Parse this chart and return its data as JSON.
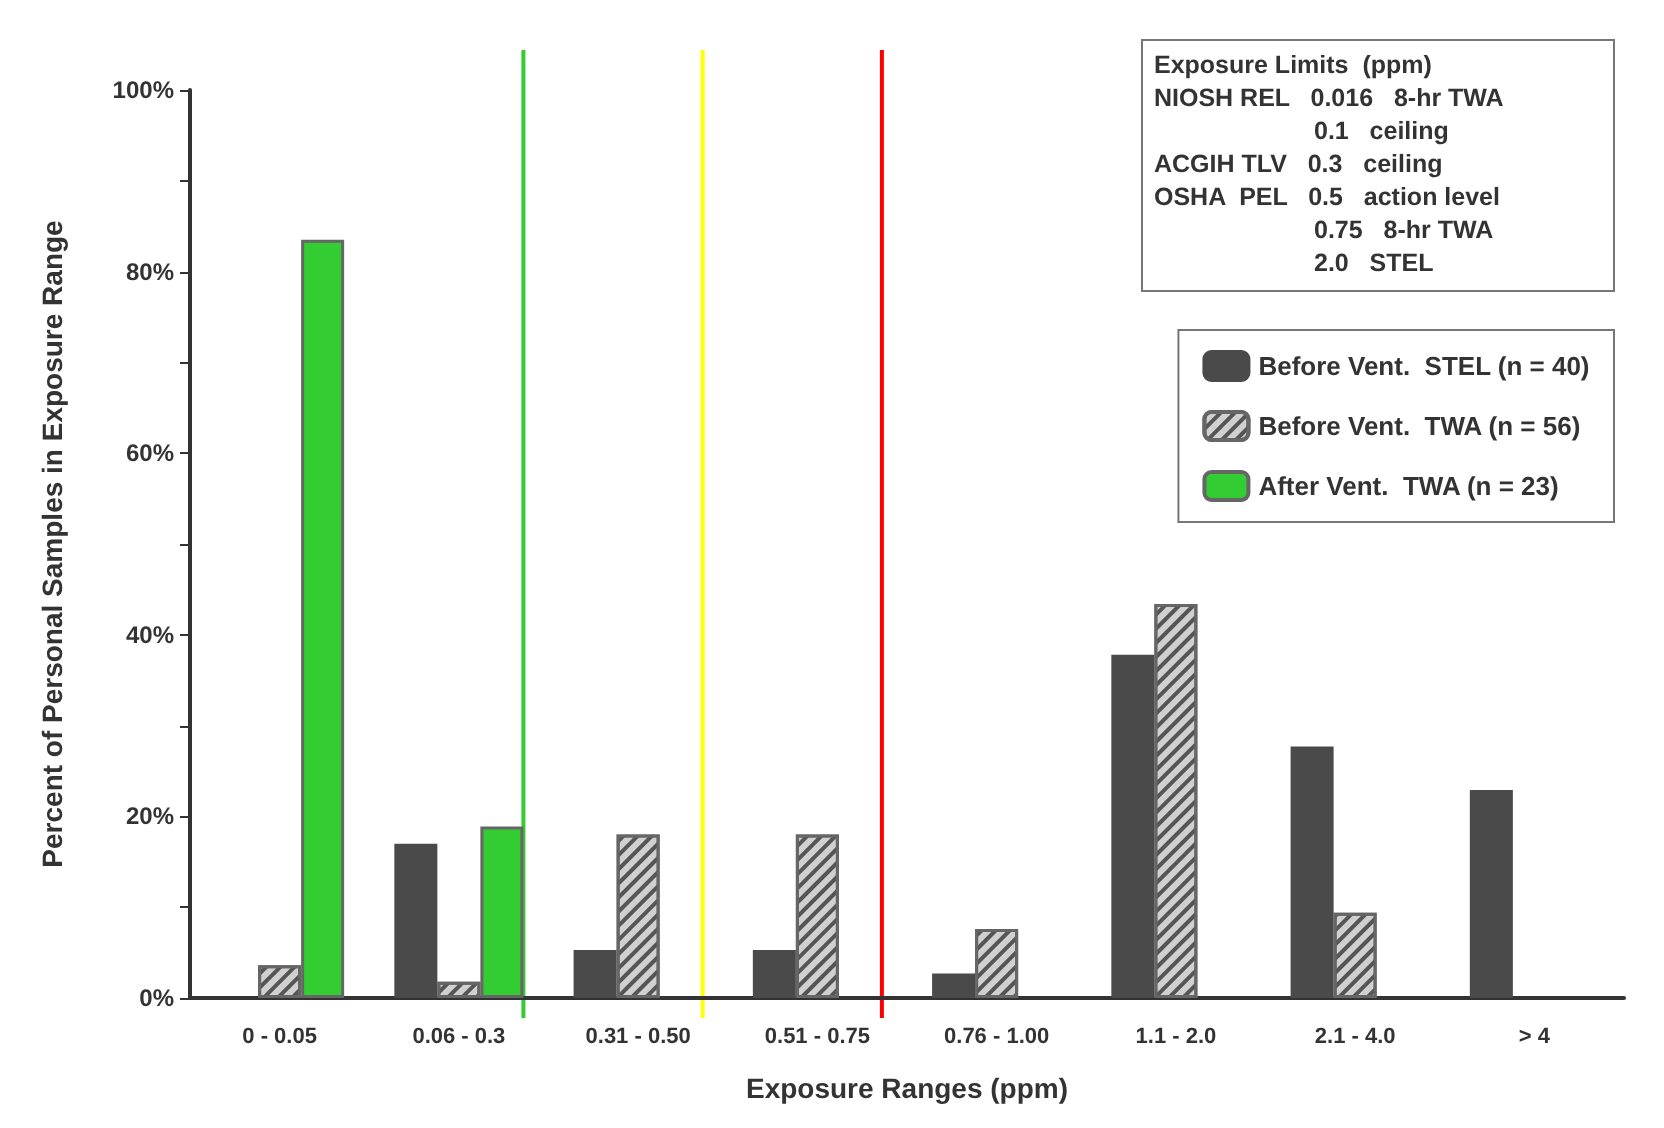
{
  "chart_data": {
    "type": "bar",
    "xlabel": "Exposure Ranges (ppm)",
    "ylabel": "Percent of Personal Samples in Exposure Range",
    "categories": [
      "0 - 0.05",
      "0.06 - 0.3",
      "0.31 - 0.50",
      "0.51 - 0.75",
      "0.76 - 1.00",
      "1.1 - 2.0",
      "2.1 - 4.0",
      "> 4"
    ],
    "series": [
      {
        "name": "Before Vent.  STEL (n = 40)",
        "color": "#4a4a4a",
        "values": [
          null,
          17,
          5.3,
          5.3,
          2.7,
          37.8,
          27.7,
          22.9
        ]
      },
      {
        "name": "Before Vent.  TWA (n = 56)",
        "color": "#d0d0d0",
        "values": [
          3.6,
          1.8,
          18,
          18,
          7.6,
          43.4,
          9.4,
          null
        ]
      },
      {
        "name": "After Vent.  TWA (n = 23)",
        "color": "#33cc33",
        "values": [
          83.5,
          18.9,
          null,
          null,
          null,
          null,
          null,
          null
        ]
      }
    ],
    "ylim": [
      0,
      100
    ],
    "yticks": [
      {
        "value": 0,
        "label": "0%"
      },
      {
        "value": 10,
        "label": null
      },
      {
        "value": 20,
        "label": "20%"
      },
      {
        "value": 30,
        "label": null
      },
      {
        "value": 40,
        "label": "40%"
      },
      {
        "value": 50,
        "label": null
      },
      {
        "value": 60,
        "label": "60%"
      },
      {
        "value": 70,
        "label": null
      },
      {
        "value": 80,
        "label": "80%"
      },
      {
        "value": 90,
        "label": null
      },
      {
        "value": 100,
        "label": "100%"
      }
    ],
    "ref_lines": [
      {
        "axis": "x",
        "value": "0.06 - 0.3",
        "color": "#33cc33"
      },
      {
        "axis": "x",
        "value": "0.31 - 0.50",
        "color": "#ffff00"
      },
      {
        "axis": "x",
        "value": "0.51 - 0.75",
        "color": "#ff0000"
      }
    ],
    "annotations": [
      "Exposure Limits  (ppm)",
      "NIOSH REL   0.016   8-hr TWA",
      "0.1   ceiling",
      "ACGIH TLV   0.3   ceiling",
      "OSHA  PEL   0.5   action level",
      "0.75   8-hr TWA",
      "2.0   STEL"
    ],
    "legend": "top right",
    "grid": false
  }
}
